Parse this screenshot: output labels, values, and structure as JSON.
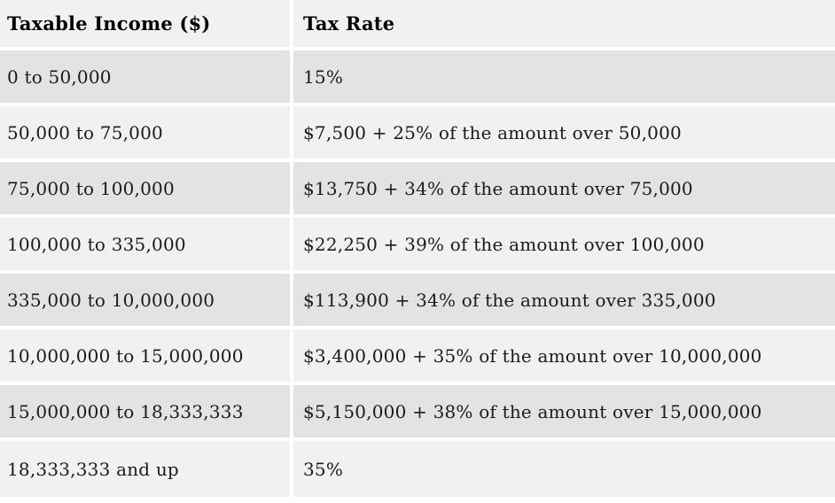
{
  "chart_data": {
    "type": "table",
    "title": "",
    "columns": [
      "Taxable Income ($)",
      "Tax Rate"
    ],
    "rows": [
      [
        "0 to 50,000",
        "15%"
      ],
      [
        "50,000 to 75,000",
        "$7,500 + 25% of the amount over 50,000"
      ],
      [
        "75,000 to 100,000",
        "$13,750 + 34% of the amount over 75,000"
      ],
      [
        "100,000 to 335,000",
        "$22,250 + 39% of the amount over 100,000"
      ],
      [
        "335,000 to 10,000,000",
        "$113,900 + 34% of the amount over 335,000"
      ],
      [
        "10,000,000 to 15,000,000",
        "$3,400,000 + 35% of the amount over 10,000,000"
      ],
      [
        "15,000,000 to 18,333,333",
        "$5,150,000 + 38% of the amount over 15,000,000"
      ],
      [
        "18,333,333 and up",
        "35%"
      ]
    ],
    "bracket_data": {
      "lower_bounds": [
        0,
        50000,
        75000,
        100000,
        335000,
        10000000,
        15000000,
        18333333
      ],
      "upper_bounds": [
        50000,
        75000,
        100000,
        335000,
        10000000,
        15000000,
        18333333,
        null
      ],
      "base_tax": [
        0,
        7500,
        13750,
        22250,
        113900,
        3400000,
        5150000,
        null
      ],
      "marginal_rate_pct": [
        15,
        25,
        34,
        39,
        34,
        35,
        38,
        35
      ]
    }
  },
  "colors": {
    "row_dark": "#e3e3e3",
    "row_light": "#f1f1f1",
    "gap": "#ffffff",
    "text": "#1b1b1b"
  }
}
